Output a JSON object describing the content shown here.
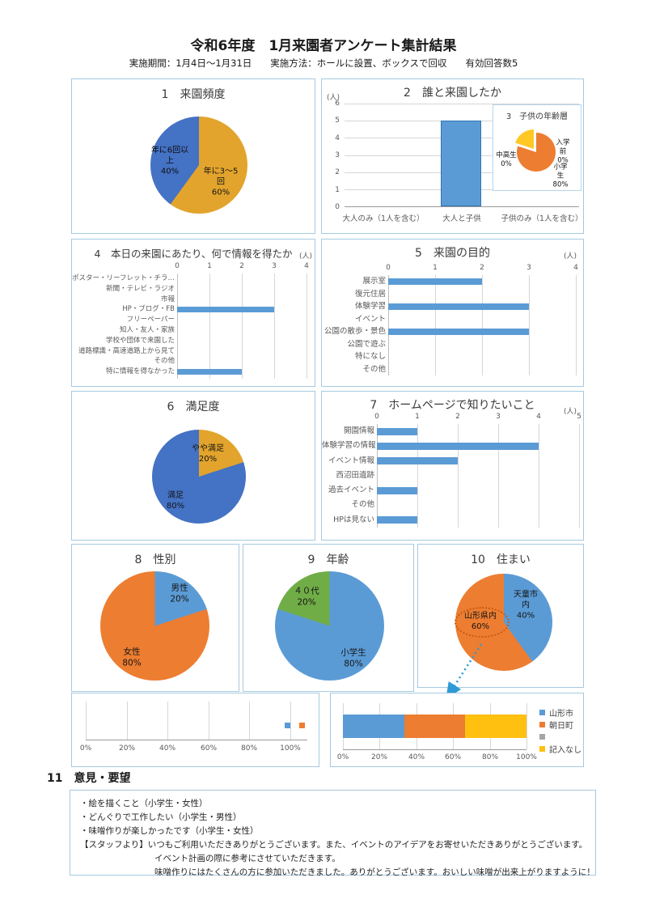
{
  "header": {
    "title": "令和6年度　1月来園者アンケート集計結果",
    "subtitle": "実施期間：1月4日～1月31日　　実施方法：ホールに設置、ボックスで回収　　有効回答数5"
  },
  "palette": {
    "dark_blue": "#4472C4",
    "gold": "#E2A42C",
    "orange": "#ED7D31",
    "light_blue": "#5B9BD5",
    "green": "#70AD47",
    "yellow": "#FFC010",
    "box_border": "#A6C9E0"
  },
  "chart_data": {
    "c1": {
      "type": "pie",
      "title": "1　来園頻度",
      "slices": [
        {
          "label": "年に3～5回",
          "pct": 60,
          "color": "#E2A42C"
        },
        {
          "label": "年に6回以上",
          "pct": 40,
          "color": "#4472C4"
        }
      ],
      "label_a": "年に6回以\n上\n40%",
      "label_b": "年に3～5\n回\n60%"
    },
    "c2": {
      "type": "bar",
      "title": "2　誰と来園したか",
      "unit": "(人)",
      "categories": [
        "大人のみ（1人を含む）",
        "大人と子供",
        "子供のみ（1人を含む）"
      ],
      "values": [
        0,
        5,
        0
      ],
      "ymax": 6,
      "yticks": [
        "6",
        "5",
        "4",
        "3",
        "2",
        "1",
        "0"
      ],
      "bar_color": "#5B9BD5"
    },
    "c3": {
      "type": "pie",
      "title": "3　子供の年齢層",
      "slices": [
        {
          "label": "小学生",
          "pct": 80,
          "color": "#ED7D31"
        },
        {
          "label": "",
          "pct": 20,
          "color": "#FFC825"
        },
        {
          "label": "入学前",
          "pct": 0
        },
        {
          "label": "中高生",
          "pct": 0
        }
      ],
      "label_nyugakumae": "入学前\n0%",
      "label_shogakusei": "小学生\n80%",
      "label_chukosei": "中高生\n0%",
      "render_main": [
        {
          "color": "#ED7D31",
          "value": 80
        },
        {
          "color": "transparent",
          "value": 20
        }
      ],
      "render_wedge": [
        {
          "color": "transparent",
          "value": 80
        },
        {
          "color": "#FFC825",
          "value": 20
        }
      ]
    },
    "c4": {
      "type": "bar_h",
      "title": "4　本日の来園にあたり、何で情報を得たか",
      "unit": "(人)",
      "xmax": 4,
      "ticks": [
        "0",
        "1",
        "2",
        "3",
        "4"
      ],
      "labels": [
        "ポスター・リーフレット・チラ…",
        "新聞・テレビ・ラジオ",
        "市報",
        "HP・ブログ・FB",
        "フリーペーパー",
        "知人・友人・家族",
        "学校や団体で来園した",
        "道路標識・高速道路上から見て",
        "その他",
        "特に情報を得なかった"
      ],
      "values": [
        0,
        0,
        0,
        3,
        0,
        0,
        0,
        0,
        0,
        2
      ]
    },
    "c5": {
      "type": "bar_h",
      "title": "5　来園の目的",
      "unit": "(人)",
      "xmax": 4,
      "ticks": [
        "0",
        "1",
        "2",
        "3",
        "4"
      ],
      "labels": [
        "展示室",
        "復元住居",
        "体験学習",
        "イベント",
        "公園の散歩・景色",
        "公園で遊ぶ",
        "特になし",
        "その他"
      ],
      "values": [
        2,
        0,
        3,
        0,
        3,
        0,
        0,
        0
      ]
    },
    "c6": {
      "type": "pie",
      "title": "6　満足度",
      "slices": [
        {
          "label": "やや満足",
          "pct": 20,
          "color": "#E2A42C"
        },
        {
          "label": "満足",
          "pct": 80,
          "color": "#4472C4"
        }
      ],
      "label_a": "やや満足\n20%",
      "label_b": "満足\n80%"
    },
    "c7": {
      "type": "bar_h",
      "title": "7　ホームページで知りたいこと",
      "unit": "(人)",
      "xmax": 5,
      "ticks": [
        "0",
        "1",
        "2",
        "3",
        "4",
        "5"
      ],
      "labels": [
        "開園情報",
        "体験学習の情報",
        "イベント情報",
        "西沼田遺跡",
        "過去イベント",
        "その他",
        "HPは見ない"
      ],
      "values": [
        1,
        4,
        2,
        0,
        1,
        0,
        1
      ]
    },
    "c8": {
      "type": "pie",
      "title": "8　性別",
      "slices": [
        {
          "label": "男性",
          "pct": 20,
          "color": "#5B9BD5"
        },
        {
          "label": "女性",
          "pct": 80,
          "color": "#ED7D31"
        }
      ],
      "label_a": "男性\n20%",
      "label_b": "女性\n80%"
    },
    "c9": {
      "type": "pie",
      "title": "9　年齢",
      "slices": [
        {
          "label": "小学生",
          "pct": 80,
          "color": "#5B9BD5"
        },
        {
          "label": "４０代",
          "pct": 20,
          "color": "#70AD47"
        }
      ],
      "label_a": "４０代\n20%",
      "label_b": "小学生\n80%"
    },
    "c10": {
      "type": "pie",
      "title": "10　住まい",
      "slices": [
        {
          "label": "天童市内",
          "pct": 40,
          "color": "#5B9BD5"
        },
        {
          "label": "山形県内",
          "pct": 60,
          "color": "#ED7D31"
        }
      ],
      "label_a": "天童市\n内\n40%",
      "label_b": "山形県内\n60%"
    },
    "bottom_left": {
      "type": "scatter",
      "ticks": [
        "0%",
        "20%",
        "40%",
        "60%",
        "80%",
        "100%"
      ],
      "markers": [
        {
          "color": "#5B9BD5",
          "approx_x": "98%",
          "left_pct": 89.7
        },
        {
          "color": "#ED7D31",
          "approx_x": "104%",
          "left_pct": 96.5
        }
      ]
    },
    "bottom_right": {
      "type": "stacked_bar",
      "ticks": [
        "0%",
        "20%",
        "40%",
        "60%",
        "80%",
        "100%"
      ],
      "segments": [
        {
          "label": "山形市",
          "pct": 33.3,
          "color": "#5B9BD5"
        },
        {
          "label": "朝日町",
          "pct": 33.3,
          "color": "#ED7D31"
        },
        {
          "label": "記入なし",
          "pct": 33.4,
          "color": "#FFC010"
        }
      ],
      "legend": [
        {
          "label": "山形市",
          "color": "#5B9BD5"
        },
        {
          "label": "朝日町",
          "color": "#ED7D31"
        },
        {
          "label": "",
          "color": "#A6A6A6"
        },
        {
          "label": "記入なし",
          "color": "#FFC010"
        }
      ]
    }
  },
  "section11": {
    "heading": "11　意見・要望",
    "lines": [
      "・絵を描くこと（小学生・女性）",
      "・どんぐりで工作したい（小学生・男性）",
      "・味噌作りが楽しかったです（小学生・女性）",
      "【スタッフより】いつもご利用いただきありがとうございます。また、イベントのアイデアをお寄せいただきありがとうございます。",
      "イベント計画の際に参考にさせていただきます。",
      "味噌作りにはたくさんの方に参加いただきました。ありがとうございます。おいしい味噌が出来上がりますように！"
    ]
  }
}
